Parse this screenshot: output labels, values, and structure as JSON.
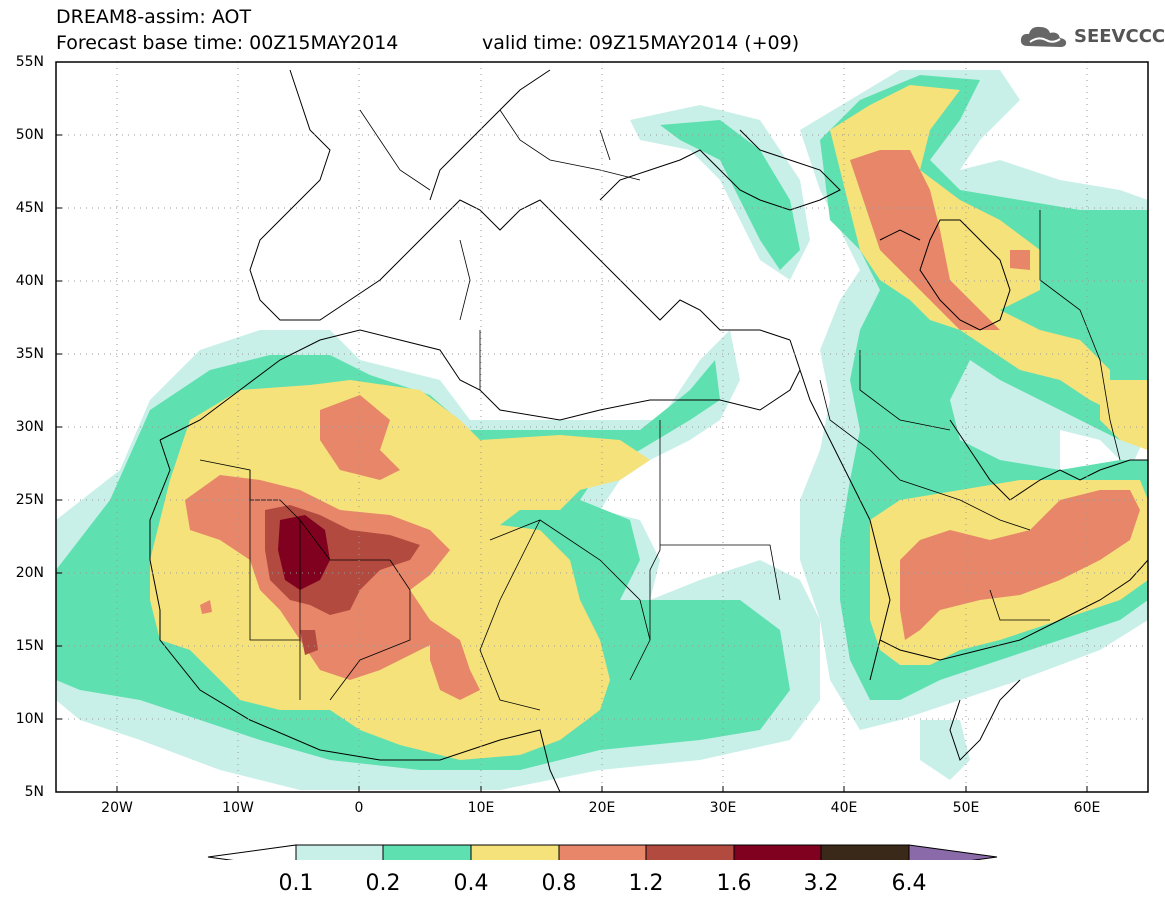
{
  "header": {
    "title": "DREAM8-assim: AOT",
    "base_time": "Forecast base time: 00Z15MAY2014",
    "valid_time": "valid time: 09Z15MAY2014 (+09)"
  },
  "logo": {
    "text": "SEEVCCC",
    "icon": "cloud-icon"
  },
  "map": {
    "projection": "lat-lon",
    "lon_range": [
      -25,
      65
    ],
    "lat_range": [
      5,
      55
    ],
    "lat_labels": [
      "55N",
      "50N",
      "45N",
      "40N",
      "35N",
      "30N",
      "25N",
      "20N",
      "15N",
      "10N",
      "5N"
    ],
    "lon_labels": [
      "20W",
      "10W",
      "0",
      "10E",
      "20E",
      "30E",
      "40E",
      "50E",
      "60E"
    ],
    "contour_fill": {
      "levels": [
        0.1,
        0.2,
        0.4,
        0.8,
        1.2,
        1.6,
        3.2,
        6.4
      ],
      "colors": [
        "#c8f0e8",
        "#5fe0b0",
        "#f5e27a",
        "#e8866a",
        "#b34a3f",
        "#800020",
        "#3a2818",
        "#8a6aa8"
      ]
    }
  },
  "colorbar": {
    "labels": [
      "0.1",
      "0.2",
      "0.4",
      "0.8",
      "1.2",
      "1.6",
      "3.2",
      "6.4"
    ]
  }
}
